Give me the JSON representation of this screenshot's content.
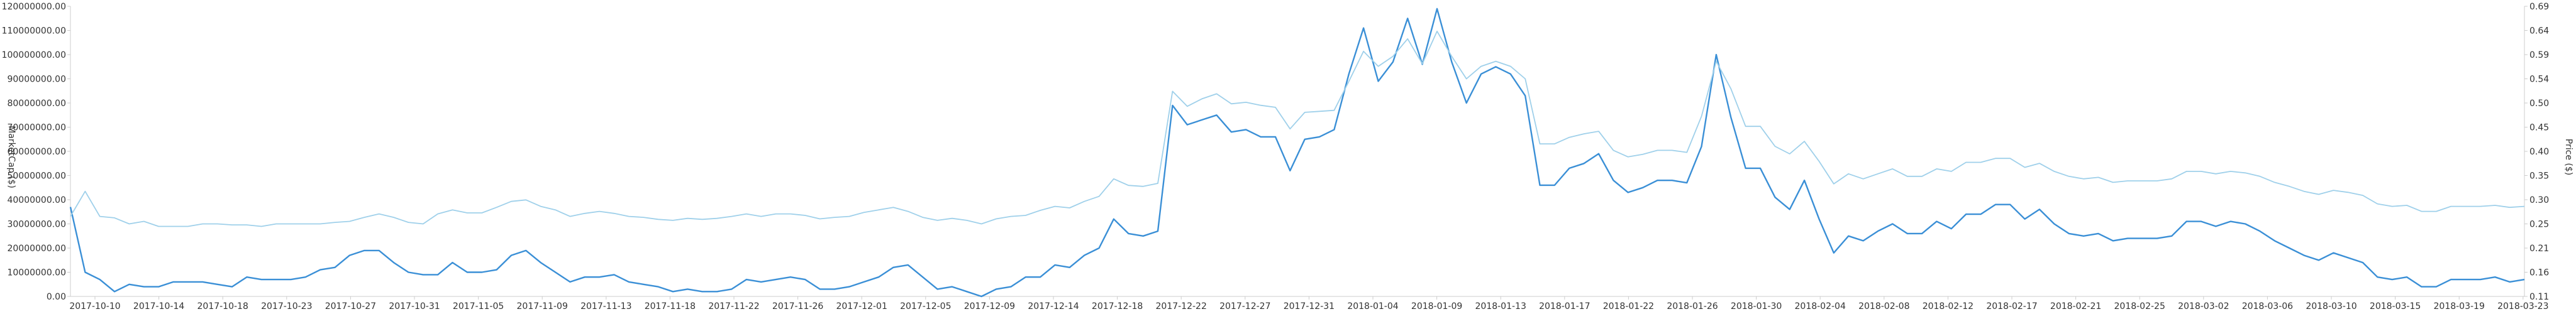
{
  "chart_data": {
    "type": "line",
    "title": "",
    "xlabel": "",
    "ylabel": "MarketCap ($)",
    "ylabel_right": "Price ($)",
    "ylim": [
      0,
      120000000
    ],
    "ylim_right": [
      0.11,
      0.69
    ],
    "y_ticks": [
      "0.00",
      "10000000.00",
      "20000000.00",
      "30000000.00",
      "40000000.00",
      "50000000.00",
      "60000000.00",
      "70000000.00",
      "80000000.00",
      "90000000.00",
      "100000000.00",
      "110000000.00",
      "120000000.00"
    ],
    "y_ticks_right": [
      "0.11",
      "0.16",
      "0.21",
      "0.25",
      "0.30",
      "0.35",
      "0.40",
      "0.45",
      "0.50",
      "0.54",
      "0.59",
      "0.64",
      "0.69"
    ],
    "x_ticks": [
      "2017-10-10",
      "2017-10-14",
      "2017-10-18",
      "2017-10-23",
      "2017-10-27",
      "2017-10-31",
      "2017-11-05",
      "2017-11-09",
      "2017-11-13",
      "2017-11-18",
      "2017-11-22",
      "2017-11-26",
      "2017-12-01",
      "2017-12-05",
      "2017-12-09",
      "2017-12-14",
      "2017-12-18",
      "2017-12-22",
      "2017-12-27",
      "2017-12-31",
      "2018-01-04",
      "2018-01-09",
      "2018-01-13",
      "2018-01-17",
      "2018-01-22",
      "2018-01-26",
      "2018-01-30",
      "2018-02-04",
      "2018-02-08",
      "2018-02-12",
      "2018-02-17",
      "2018-02-21",
      "2018-02-25",
      "2018-03-02",
      "2018-03-06",
      "2018-03-10",
      "2018-03-15",
      "2018-03-19",
      "2018-03-23"
    ],
    "grid": false,
    "colors": {
      "market_cap": "#3a8fd6",
      "price": "#9fd0ea"
    },
    "series": [
      {
        "axis": "left",
        "values": [
          37000000,
          10000000,
          7000000,
          2000000,
          5000000,
          4000000,
          4000000,
          6000000,
          6000000,
          6000000,
          5000000,
          4000000,
          8000000,
          7000000,
          7000000,
          7000000,
          8000000,
          11000000,
          12000000,
          17000000,
          19000000,
          19000000,
          14000000,
          10000000,
          9000000,
          9000000,
          14000000,
          10000000,
          10000000,
          11000000,
          17000000,
          19000000,
          14000000,
          10000000,
          6000000,
          8000000,
          8000000,
          9000000,
          6000000,
          5000000,
          4000000,
          2000000,
          3000000,
          2000000,
          2000000,
          3000000,
          7000000,
          6000000,
          7000000,
          8000000,
          7000000,
          3000000,
          3000000,
          4000000,
          6000000,
          8000000,
          12000000,
          13000000,
          8000000,
          3000000,
          4000000,
          2000000,
          0,
          3000000,
          4000000,
          8000000,
          8000000,
          13000000,
          12000000,
          17000000,
          20000000,
          32000000,
          26000000,
          25000000,
          27000000,
          79000000,
          71000000,
          73000000,
          75000000,
          68000000,
          69000000,
          66000000,
          66000000,
          52000000,
          65000000,
          66000000,
          69000000,
          92000000,
          111000000,
          89000000,
          97000000,
          115000000,
          96000000,
          119000000,
          97000000,
          80000000,
          92000000,
          95000000,
          92000000,
          83000000,
          46000000,
          46000000,
          53000000,
          55000000,
          59000000,
          48000000,
          43000000,
          45000000,
          48000000,
          48000000,
          47000000,
          62000000,
          100000000,
          74000000,
          53000000,
          53000000,
          41000000,
          36000000,
          48000000,
          32000000,
          18000000,
          25000000,
          23000000,
          27000000,
          30000000,
          26000000,
          26000000,
          31000000,
          28000000,
          34000000,
          34000000,
          38000000,
          38000000,
          32000000,
          36000000,
          30000000,
          26000000,
          25000000,
          26000000,
          23000000,
          24000000,
          24000000,
          24000000,
          25000000,
          31000000,
          31000000,
          29000000,
          31000000,
          30000000,
          27000000,
          23000000,
          20000000,
          17000000,
          15000000,
          18000000,
          16000000,
          14000000,
          8000000,
          7000000,
          8000000,
          4000000,
          4000000,
          7000000,
          7000000,
          7000000,
          8000000,
          6000000,
          7000000
        ]
      },
      {
        "axis": "right",
        "values": [
          0.27,
          0.32,
          0.27,
          0.267,
          0.255,
          0.26,
          0.25,
          0.25,
          0.25,
          0.255,
          0.255,
          0.253,
          0.253,
          0.25,
          0.255,
          0.255,
          0.255,
          0.255,
          0.258,
          0.26,
          0.268,
          0.275,
          0.268,
          0.258,
          0.255,
          0.275,
          0.283,
          0.277,
          0.277,
          0.288,
          0.3,
          0.303,
          0.29,
          0.283,
          0.27,
          0.276,
          0.28,
          0.276,
          0.27,
          0.268,
          0.264,
          0.262,
          0.266,
          0.264,
          0.266,
          0.27,
          0.275,
          0.27,
          0.275,
          0.275,
          0.272,
          0.265,
          0.268,
          0.27,
          0.278,
          0.283,
          0.288,
          0.28,
          0.268,
          0.262,
          0.266,
          0.262,
          0.255,
          0.265,
          0.27,
          0.272,
          0.282,
          0.29,
          0.287,
          0.3,
          0.31,
          0.345,
          0.332,
          0.33,
          0.336,
          0.52,
          0.49,
          0.505,
          0.515,
          0.495,
          0.498,
          0.492,
          0.488,
          0.445,
          0.478,
          0.48,
          0.482,
          0.54,
          0.6,
          0.57,
          0.59,
          0.625,
          0.575,
          0.64,
          0.59,
          0.545,
          0.57,
          0.58,
          0.57,
          0.545,
          0.415,
          0.415,
          0.428,
          0.435,
          0.44,
          0.402,
          0.389,
          0.394,
          0.402,
          0.402,
          0.398,
          0.47,
          0.58,
          0.525,
          0.45,
          0.45,
          0.41,
          0.395,
          0.42,
          0.38,
          0.335,
          0.355,
          0.345,
          0.355,
          0.365,
          0.35,
          0.35,
          0.365,
          0.36,
          0.378,
          0.378,
          0.386,
          0.386,
          0.368,
          0.376,
          0.36,
          0.35,
          0.345,
          0.348,
          0.338,
          0.341,
          0.341,
          0.341,
          0.345,
          0.36,
          0.36,
          0.355,
          0.36,
          0.357,
          0.35,
          0.338,
          0.33,
          0.32,
          0.314,
          0.322,
          0.318,
          0.312,
          0.295,
          0.29,
          0.292,
          0.28,
          0.28,
          0.29,
          0.29,
          0.29,
          0.292,
          0.288,
          0.29
        ]
      }
    ]
  }
}
